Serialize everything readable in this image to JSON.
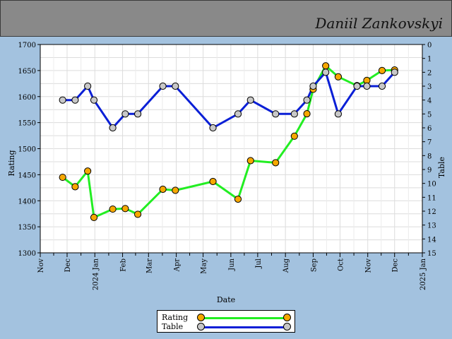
{
  "header": {
    "signature": "Daniil Zankovskyi"
  },
  "chart_data": {
    "type": "line",
    "xlabel": "Date",
    "ylabel": "Rating",
    "y2label": "Table",
    "ylim": [
      1300,
      1700
    ],
    "y2lim": [
      15,
      0
    ],
    "yticks": [
      1300,
      1350,
      1400,
      1450,
      1500,
      1550,
      1600,
      1650,
      1700
    ],
    "y2ticks": [
      0,
      1,
      2,
      3,
      4,
      5,
      6,
      7,
      8,
      9,
      10,
      11,
      12,
      13,
      14,
      15
    ],
    "xlim": [
      "2023-11-01",
      "2025-01-01"
    ],
    "xticks": [
      {
        "date": "2023-11-01",
        "label": "Nov"
      },
      {
        "date": "2023-12-01",
        "label": "Dec"
      },
      {
        "date": "2024-01-01",
        "label": "2024 Jan"
      },
      {
        "date": "2024-02-01",
        "label": "Feb"
      },
      {
        "date": "2024-03-01",
        "label": "Mar"
      },
      {
        "date": "2024-04-01",
        "label": "Apr"
      },
      {
        "date": "2024-05-01",
        "label": "May"
      },
      {
        "date": "2024-06-01",
        "label": "Jun"
      },
      {
        "date": "2024-07-01",
        "label": "Jul"
      },
      {
        "date": "2024-08-01",
        "label": "Aug"
      },
      {
        "date": "2024-09-01",
        "label": "Sep"
      },
      {
        "date": "2024-10-01",
        "label": "Oct"
      },
      {
        "date": "2024-11-01",
        "label": "Nov"
      },
      {
        "date": "2024-12-01",
        "label": "Dec"
      },
      {
        "date": "2025-01-01",
        "label": "2025 Jan"
      }
    ],
    "grid": true,
    "legend_position": "bottom-center",
    "series": [
      {
        "name": "Rating",
        "axis": "left",
        "line_color": "#22ee22",
        "marker_color": "#f6a800",
        "points": [
          {
            "x": "2023-11-26",
            "y": 1445
          },
          {
            "x": "2023-12-10",
            "y": 1427
          },
          {
            "x": "2023-12-24",
            "y": 1457
          },
          {
            "x": "2023-12-31",
            "y": 1368
          },
          {
            "x": "2024-01-21",
            "y": 1384
          },
          {
            "x": "2024-02-04",
            "y": 1385
          },
          {
            "x": "2024-02-18",
            "y": 1374
          },
          {
            "x": "2024-03-17",
            "y": 1422
          },
          {
            "x": "2024-03-31",
            "y": 1420
          },
          {
            "x": "2024-05-12",
            "y": 1437
          },
          {
            "x": "2024-06-09",
            "y": 1403
          },
          {
            "x": "2024-06-23",
            "y": 1477
          },
          {
            "x": "2024-07-21",
            "y": 1473
          },
          {
            "x": "2024-08-11",
            "y": 1524
          },
          {
            "x": "2024-08-25",
            "y": 1567
          },
          {
            "x": "2024-09-01",
            "y": 1614
          },
          {
            "x": "2024-09-15",
            "y": 1659
          },
          {
            "x": "2024-09-29",
            "y": 1638
          },
          {
            "x": "2024-10-20",
            "y": 1621
          },
          {
            "x": "2024-10-31",
            "y": 1631
          },
          {
            "x": "2024-11-17",
            "y": 1650
          },
          {
            "x": "2024-12-01",
            "y": 1651
          }
        ]
      },
      {
        "name": "Table",
        "axis": "right",
        "line_color": "#0a1fd6",
        "marker_color": "#c8c8c8",
        "points": [
          {
            "x": "2023-11-26",
            "y": 4
          },
          {
            "x": "2023-12-10",
            "y": 4
          },
          {
            "x": "2023-12-24",
            "y": 3
          },
          {
            "x": "2023-12-31",
            "y": 4
          },
          {
            "x": "2024-01-21",
            "y": 6
          },
          {
            "x": "2024-02-04",
            "y": 5
          },
          {
            "x": "2024-02-18",
            "y": 5
          },
          {
            "x": "2024-03-17",
            "y": 3
          },
          {
            "x": "2024-03-31",
            "y": 3
          },
          {
            "x": "2024-05-12",
            "y": 6
          },
          {
            "x": "2024-06-09",
            "y": 5
          },
          {
            "x": "2024-06-23",
            "y": 4
          },
          {
            "x": "2024-07-21",
            "y": 5
          },
          {
            "x": "2024-08-11",
            "y": 5
          },
          {
            "x": "2024-08-25",
            "y": 4
          },
          {
            "x": "2024-09-01",
            "y": 3
          },
          {
            "x": "2024-09-15",
            "y": 2
          },
          {
            "x": "2024-09-29",
            "y": 5
          },
          {
            "x": "2024-10-20",
            "y": 3
          },
          {
            "x": "2024-10-31",
            "y": 3
          },
          {
            "x": "2024-11-17",
            "y": 3
          },
          {
            "x": "2024-12-01",
            "y": 2
          }
        ]
      }
    ]
  }
}
